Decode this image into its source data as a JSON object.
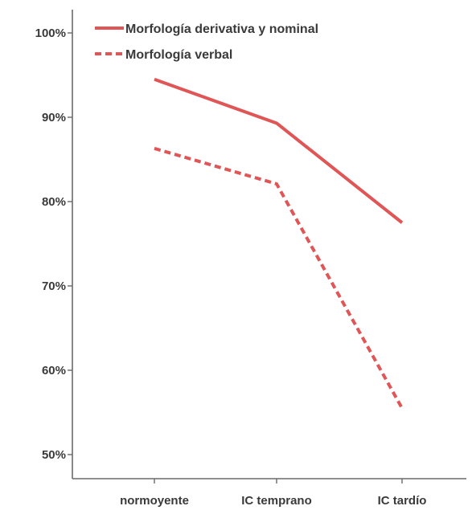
{
  "chart_data": {
    "type": "line",
    "categories": [
      "normoyente",
      "IC temprano",
      "IC tardío"
    ],
    "series": [
      {
        "name": "Morfología derivativa y nominal",
        "values": [
          94.5,
          89.3,
          77.5
        ],
        "color": "#e05555",
        "style": "solid"
      },
      {
        "name": "Morfología verbal",
        "values": [
          86.3,
          82.1,
          55.5
        ],
        "color": "#e05555",
        "style": "dashed"
      }
    ],
    "yticks": [
      "50%",
      "60%",
      "70%",
      "80%",
      "90%",
      "100%"
    ],
    "ylim": [
      49,
      103
    ],
    "grid": false,
    "legend_position": "top-left",
    "title": "",
    "xlabel": "",
    "ylabel": ""
  }
}
